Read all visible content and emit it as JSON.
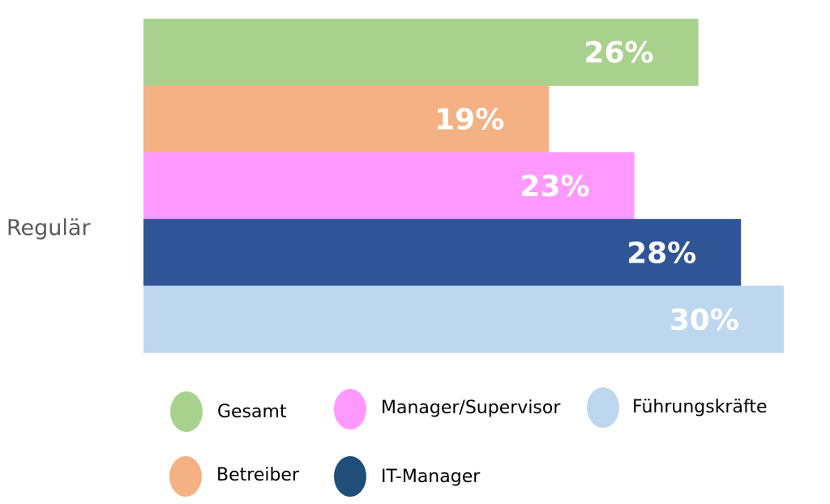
{
  "chart_data": {
    "type": "bar",
    "orientation": "horizontal",
    "categories": [
      "Regulär"
    ],
    "series": [
      {
        "name": "Gesamt",
        "values": [
          26
        ],
        "label": "26%",
        "color": "#a9d18e"
      },
      {
        "name": "Betreiber",
        "values": [
          19
        ],
        "label": "19%",
        "color": "#f4b183"
      },
      {
        "name": "Manager/Supervisor",
        "values": [
          23
        ],
        "label": "23%",
        "color": "#ff99ff"
      },
      {
        "name": "IT-Manager",
        "values": [
          28
        ],
        "label": "28%",
        "color": "#2f5597"
      },
      {
        "name": "Führungskräfte",
        "values": [
          30
        ],
        "label": "30%",
        "color": "#bdd7ee"
      }
    ],
    "xlim": [
      0,
      30
    ],
    "grid": false,
    "legend_position": "bottom",
    "legend": [
      {
        "name": "Gesamt",
        "color": "#a9d18e"
      },
      {
        "name": "Manager/Supervisor",
        "color": "#ff99ff"
      },
      {
        "name": "Führungskräfte",
        "color": "#bdd7ee"
      },
      {
        "name": "Betreiber",
        "color": "#f4b183"
      },
      {
        "name": "IT-Manager",
        "color": "#1f4e79"
      }
    ]
  }
}
